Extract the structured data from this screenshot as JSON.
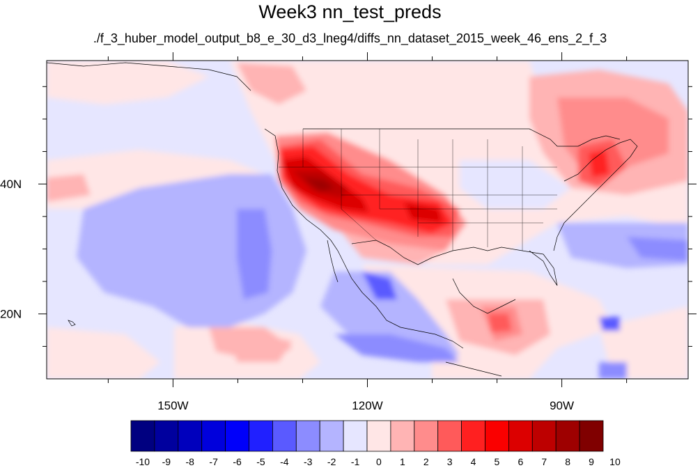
{
  "title": "Week3 nn_test_preds",
  "subtitle": "./f_3_huber_model_output_b8_e_30_d3_lneg4/diffs_nn_dataset_2015_week_46_ens_2_f_3",
  "lat_labels": [
    "40N",
    "20N"
  ],
  "lon_labels": [
    "150W",
    "120W",
    "90W"
  ],
  "colorbar": {
    "labels": [
      "-10",
      "-9",
      "-8",
      "-7",
      "-6",
      "-5",
      "-4",
      "-3",
      "-2",
      "-1",
      "0",
      "1",
      "2",
      "3",
      "4",
      "5",
      "6",
      "7",
      "8",
      "9",
      "10"
    ],
    "colors": [
      "#000080",
      "#00009e",
      "#0000bd",
      "#0000dc",
      "#0000fa",
      "#2020ff",
      "#5a5aff",
      "#8c8cff",
      "#b4b4ff",
      "#e6e6ff",
      "#ffe6e6",
      "#ffb4b4",
      "#ff8c8c",
      "#ff5a5a",
      "#ff2020",
      "#fa0000",
      "#dc0000",
      "#bd0000",
      "#9e0000",
      "#800000"
    ]
  },
  "map": {
    "lon_range": [
      -169.5,
      -70.5
    ],
    "lat_range": [
      10,
      59
    ],
    "lon_ticks": [
      -150,
      -120,
      -90
    ],
    "lat_ticks": [
      40,
      20
    ]
  }
}
